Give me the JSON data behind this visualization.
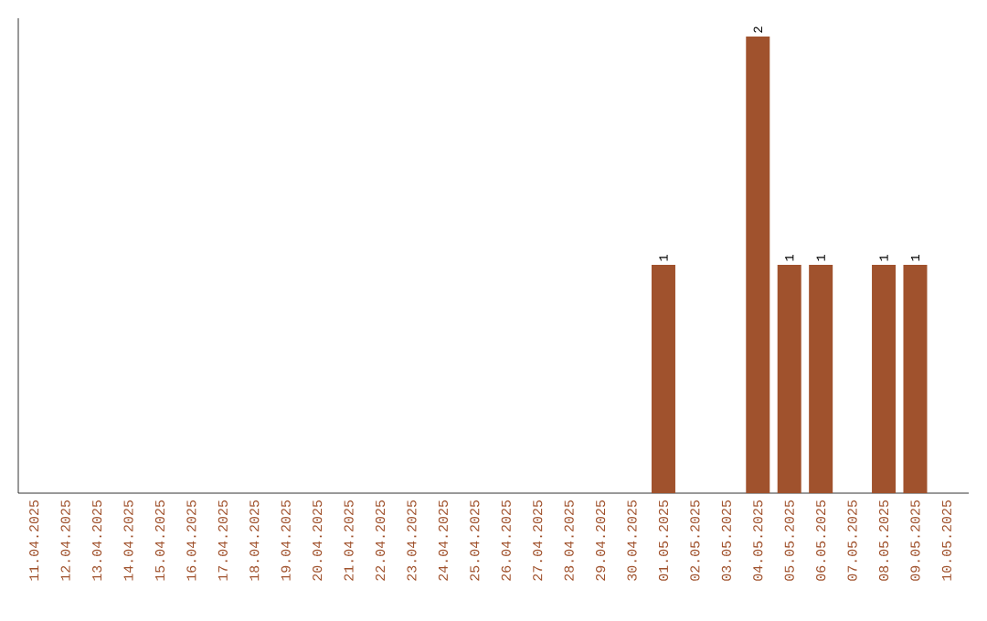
{
  "chart_data": {
    "type": "bar",
    "categories": [
      "11.04.2025",
      "12.04.2025",
      "13.04.2025",
      "14.04.2025",
      "15.04.2025",
      "16.04.2025",
      "17.04.2025",
      "18.04.2025",
      "19.04.2025",
      "20.04.2025",
      "21.04.2025",
      "22.04.2025",
      "23.04.2025",
      "24.04.2025",
      "25.04.2025",
      "26.04.2025",
      "27.04.2025",
      "28.04.2025",
      "29.04.2025",
      "30.04.2025",
      "01.05.2025",
      "02.05.2025",
      "03.05.2025",
      "04.05.2025",
      "05.05.2025",
      "06.05.2025",
      "07.05.2025",
      "08.05.2025",
      "09.05.2025",
      "10.05.2025"
    ],
    "values": [
      null,
      null,
      null,
      null,
      null,
      null,
      null,
      null,
      null,
      null,
      null,
      null,
      null,
      null,
      null,
      null,
      null,
      null,
      null,
      null,
      1,
      null,
      null,
      2,
      1,
      1,
      null,
      1,
      1,
      null
    ],
    "value_labels": [
      null,
      null,
      null,
      null,
      null,
      null,
      null,
      null,
      null,
      null,
      null,
      null,
      null,
      null,
      null,
      null,
      null,
      null,
      null,
      null,
      "1",
      null,
      null,
      "2",
      "1",
      "1",
      null,
      "1",
      "1",
      null
    ],
    "color": "#a0522d"
  }
}
